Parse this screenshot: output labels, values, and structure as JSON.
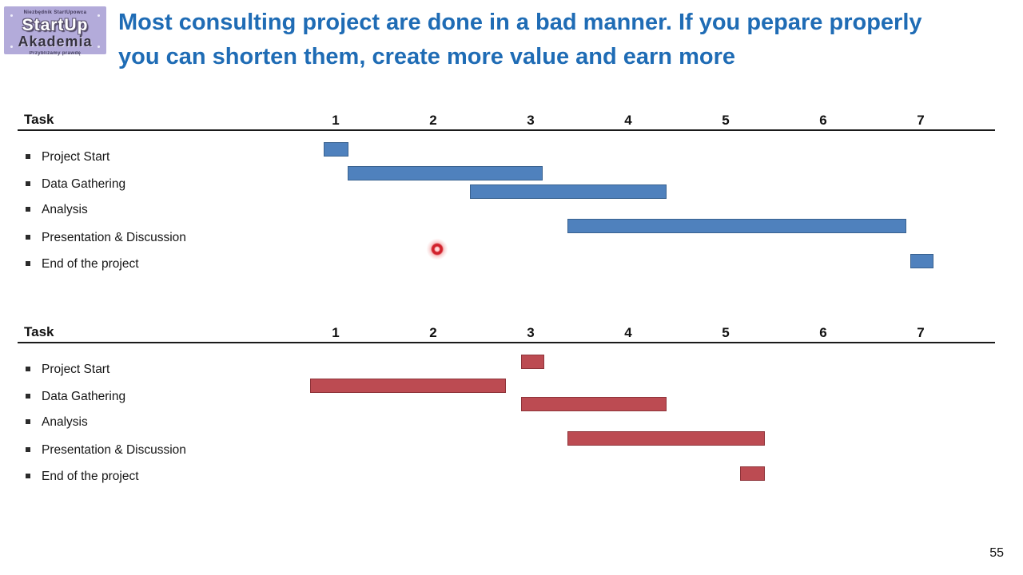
{
  "logo": {
    "top_caption": "Niezbędnik StartUpowca",
    "line1": "StartUp",
    "line2": "Akademia",
    "bottom_caption": "Przybliżamy prawdę"
  },
  "title": {
    "line1": "Most consulting project are done in a bad manner. If you pepare properly",
    "line2": "you can shorten them, create more value and earn more",
    "color": "#1f6cb5"
  },
  "page_number": "55",
  "colors": {
    "blue_bar_fill": "#4f81bd",
    "blue_bar_border": "#38618f",
    "red_bar_fill": "#bc4b52",
    "red_bar_border": "#8e3339",
    "header_rule": "#1a1a1a"
  },
  "chart_data": [
    {
      "type": "gantt",
      "name": "original-project-plan",
      "task_header": "Task",
      "columns": [
        "1",
        "2",
        "3",
        "4",
        "5",
        "6",
        "7"
      ],
      "x_range": [
        1,
        7
      ],
      "grid": false,
      "bar_fill": "#4f81bd",
      "bar_border": "#38618f",
      "tasks": [
        {
          "label": "Project Start",
          "start": 0.88,
          "end": 1.13
        },
        {
          "label": "Data Gathering",
          "start": 1.12,
          "end": 3.12
        },
        {
          "label": "Analysis",
          "start": 2.38,
          "end": 4.39
        },
        {
          "label": "Presentation & Discussion",
          "start": 3.38,
          "end": 6.85
        },
        {
          "label": "End of the project",
          "start": 6.89,
          "end": 7.13
        }
      ]
    },
    {
      "type": "gantt",
      "name": "shortened-project-plan",
      "task_header": "Task",
      "columns": [
        "1",
        "2",
        "3",
        "4",
        "5",
        "6",
        "7"
      ],
      "x_range": [
        1,
        7
      ],
      "grid": false,
      "bar_fill": "#bc4b52",
      "bar_border": "#8e3339",
      "tasks": [
        {
          "label": "Project Start",
          "start": 2.9,
          "end": 3.14
        },
        {
          "label": "Data Gathering",
          "start": 0.74,
          "end": 2.75
        },
        {
          "label": "Analysis",
          "start": 2.9,
          "end": 4.39
        },
        {
          "label": "Presentation & Discussion",
          "start": 3.38,
          "end": 5.4
        },
        {
          "label": "End of the project",
          "start": 5.15,
          "end": 5.4
        }
      ]
    }
  ]
}
